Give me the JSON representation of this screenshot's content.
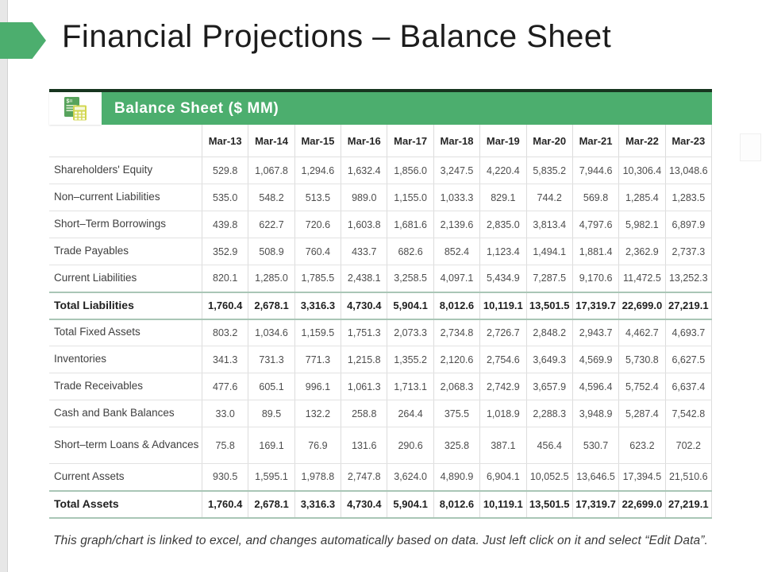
{
  "slide": {
    "title": "Financial Projections – Balance Sheet",
    "footer": "This graph/chart is linked to excel, and changes automatically based on data. Just left click on it and select “Edit Data”."
  },
  "table": {
    "header_title": "Balance Sheet ($ MM)",
    "header_icon": "invoice-calculator-icon",
    "columns": [
      "Mar-13",
      "Mar-14",
      "Mar-15",
      "Mar-16",
      "Mar-17",
      "Mar-18",
      "Mar-19",
      "Mar-20",
      "Mar-21",
      "Mar-22",
      "Mar-23"
    ],
    "rows": [
      {
        "label": "Shareholders' Equity",
        "bold": false,
        "tall": false,
        "values": [
          "529.8",
          "1,067.8",
          "1,294.6",
          "1,632.4",
          "1,856.0",
          "3,247.5",
          "4,220.4",
          "5,835.2",
          "7,944.6",
          "10,306.4",
          "13,048.6"
        ]
      },
      {
        "label": "Non–current Liabilities",
        "bold": false,
        "tall": false,
        "values": [
          "535.0",
          "548.2",
          "513.5",
          "989.0",
          "1,155.0",
          "1,033.3",
          "829.1",
          "744.2",
          "569.8",
          "1,285.4",
          "1,283.5"
        ]
      },
      {
        "label": "Short–Term Borrowings",
        "bold": false,
        "tall": false,
        "values": [
          "439.8",
          "622.7",
          "720.6",
          "1,603.8",
          "1,681.6",
          "2,139.6",
          "2,835.0",
          "3,813.4",
          "4,797.6",
          "5,982.1",
          "6,897.9"
        ]
      },
      {
        "label": "Trade Payables",
        "bold": false,
        "tall": false,
        "values": [
          "352.9",
          "508.9",
          "760.4",
          "433.7",
          "682.6",
          "852.4",
          "1,123.4",
          "1,494.1",
          "1,881.4",
          "2,362.9",
          "2,737.3"
        ]
      },
      {
        "label": "Current Liabilities",
        "bold": false,
        "tall": false,
        "values": [
          "820.1",
          "1,285.0",
          "1,785.5",
          "2,438.1",
          "3,258.5",
          "4,097.1",
          "5,434.9",
          "7,287.5",
          "9,170.6",
          "11,472.5",
          "13,252.3"
        ]
      },
      {
        "label": "Total Liabilities",
        "bold": true,
        "tall": false,
        "values": [
          "1,760.4",
          "2,678.1",
          "3,316.3",
          "4,730.4",
          "5,904.1",
          "8,012.6",
          "10,119.1",
          "13,501.5",
          "17,319.7",
          "22,699.0",
          "27,219.1"
        ]
      },
      {
        "label": "Total Fixed Assets",
        "bold": false,
        "tall": false,
        "values": [
          "803.2",
          "1,034.6",
          "1,159.5",
          "1,751.3",
          "2,073.3",
          "2,734.8",
          "2,726.7",
          "2,848.2",
          "2,943.7",
          "4,462.7",
          "4,693.7"
        ]
      },
      {
        "label": "Inventories",
        "bold": false,
        "tall": false,
        "values": [
          "341.3",
          "731.3",
          "771.3",
          "1,215.8",
          "1,355.2",
          "2,120.6",
          "2,754.6",
          "3,649.3",
          "4,569.9",
          "5,730.8",
          "6,627.5"
        ]
      },
      {
        "label": "Trade Receivables",
        "bold": false,
        "tall": false,
        "values": [
          "477.6",
          "605.1",
          "996.1",
          "1,061.3",
          "1,713.1",
          "2,068.3",
          "2,742.9",
          "3,657.9",
          "4,596.4",
          "5,752.4",
          "6,637.4"
        ]
      },
      {
        "label": "Cash and Bank Balances",
        "bold": false,
        "tall": false,
        "values": [
          "33.0",
          "89.5",
          "132.2",
          "258.8",
          "264.4",
          "375.5",
          "1,018.9",
          "2,288.3",
          "3,948.9",
          "5,287.4",
          "7,542.8"
        ]
      },
      {
        "label": "Short–term Loans & Advances",
        "bold": false,
        "tall": true,
        "values": [
          "75.8",
          "169.1",
          "76.9",
          "131.6",
          "290.6",
          "325.8",
          "387.1",
          "456.4",
          "530.7",
          "623.2",
          "702.2"
        ]
      },
      {
        "label": "Current Assets",
        "bold": false,
        "tall": false,
        "values": [
          "930.5",
          "1,595.1",
          "1,978.8",
          "2,747.8",
          "3,624.0",
          "4,890.9",
          "6,904.1",
          "10,052.5",
          "13,646.5",
          "17,394.5",
          "21,510.6"
        ]
      },
      {
        "label": "Total Assets",
        "bold": true,
        "tall": false,
        "values": [
          "1,760.4",
          "2,678.1",
          "3,316.3",
          "4,730.4",
          "5,904.1",
          "8,012.6",
          "10,119.1",
          "13,501.5",
          "17,319.7",
          "22,699.0",
          "27,219.1"
        ]
      }
    ]
  },
  "colors": {
    "accent_green": "#4cae6e",
    "header_top_line": "#17351f",
    "total_row_border": "#a9c6b6",
    "grid_line": "#dcdcdc"
  }
}
